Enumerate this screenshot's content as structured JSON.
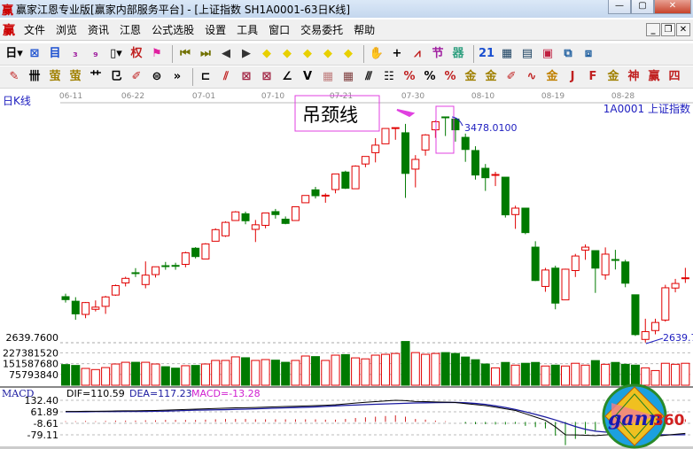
{
  "window": {
    "title": "赢家江恩专业版[赢家内部服务平台] - [上证指数  SH1A0001-63日K线]",
    "logo": "赢",
    "minimize": "—",
    "maximize": "▢",
    "close": "✕"
  },
  "menu": {
    "logo": "赢",
    "items": [
      "文件",
      "浏览",
      "资讯",
      "江恩",
      "公式选股",
      "设置",
      "工具",
      "窗口",
      "交易委托",
      "帮助"
    ],
    "mdi": [
      "_",
      "❐",
      "✕"
    ]
  },
  "toolbar1": [
    {
      "name": "period-dropdown",
      "glyph": "日▾",
      "color": "#000"
    },
    {
      "name": "composite-icon",
      "glyph": "⊠",
      "color": "#1a4fd0"
    },
    {
      "name": "list-icon",
      "glyph": "目",
      "color": "#1a4fd0"
    },
    {
      "name": "chart3-icon",
      "glyph": "₃",
      "color": "#a020a0"
    },
    {
      "name": "chart9-icon",
      "glyph": "₉",
      "color": "#a020a0"
    },
    {
      "name": "candle-type-dropdown",
      "glyph": "▯▾",
      "color": "#000"
    },
    {
      "name": "rights-icon",
      "glyph": "权",
      "color": "#c02020"
    },
    {
      "name": "flag-icon",
      "glyph": "⚑",
      "color": "#e020a0"
    },
    {
      "sep": true
    },
    {
      "name": "first-icon",
      "glyph": "⏮",
      "color": "#707000"
    },
    {
      "name": "last-icon",
      "glyph": "⏭",
      "color": "#707000"
    },
    {
      "name": "prev-icon",
      "glyph": "◀",
      "color": "#333"
    },
    {
      "name": "next-icon",
      "glyph": "▶",
      "color": "#333"
    },
    {
      "name": "left-diamond-icon",
      "glyph": "◆",
      "color": "#e8d000"
    },
    {
      "name": "right-diamond-icon",
      "glyph": "◆",
      "color": "#e8d000"
    },
    {
      "name": "expand-diamond-icon",
      "glyph": "◆",
      "color": "#e8d000"
    },
    {
      "name": "shrink-diamond-icon",
      "glyph": "◆",
      "color": "#e8d000"
    },
    {
      "name": "center-diamond-icon",
      "glyph": "◆",
      "color": "#e8d000"
    },
    {
      "sep": true
    },
    {
      "name": "hand-icon",
      "glyph": "✋",
      "color": "#333"
    },
    {
      "name": "crosshair-icon",
      "glyph": "+",
      "color": "#000"
    },
    {
      "name": "line-chart-icon",
      "glyph": "⩘",
      "color": "#c02020"
    },
    {
      "name": "festival-icon",
      "glyph": "节",
      "color": "#a020a0"
    },
    {
      "name": "gann-icon",
      "glyph": "器",
      "color": "#30a080"
    },
    {
      "sep": true
    },
    {
      "name": "calendar-icon",
      "glyph": "21",
      "color": "#1a4fd0"
    },
    {
      "name": "calculator-icon",
      "glyph": "▦",
      "color": "#1a4060"
    },
    {
      "name": "notes-icon",
      "glyph": "▤",
      "color": "#1a4060"
    },
    {
      "name": "save-icon",
      "glyph": "▣",
      "color": "#c02040"
    },
    {
      "name": "network-icon",
      "glyph": "⧉",
      "color": "#2060a0"
    },
    {
      "name": "multi-window-icon",
      "glyph": "⧈",
      "color": "#2060a0"
    }
  ],
  "toolbar2": [
    {
      "name": "pen-icon",
      "glyph": "✎",
      "color": "#c02020"
    },
    {
      "name": "grid-line-icon",
      "glyph": "卌",
      "color": "#000"
    },
    {
      "name": "gold-ruler-icon",
      "glyph": "萤",
      "color": "#a08000"
    },
    {
      "name": "gold-ruler2-icon",
      "glyph": "萤",
      "color": "#a08000"
    },
    {
      "name": "fork-icon",
      "glyph": "艹",
      "color": "#000"
    },
    {
      "name": "spiral-icon",
      "glyph": "㔾",
      "color": "#000"
    },
    {
      "name": "brush-icon",
      "glyph": "✐",
      "color": "#c02020"
    },
    {
      "name": "circle-grid-icon",
      "glyph": "⊜",
      "color": "#000"
    },
    {
      "name": "more-icon",
      "glyph": "»",
      "color": "#000"
    },
    {
      "sep": true
    },
    {
      "name": "box-icon",
      "glyph": "⊏",
      "color": "#000"
    },
    {
      "name": "fan-icon",
      "glyph": "⫽",
      "color": "#c02020"
    },
    {
      "name": "square-fan-icon",
      "glyph": "⊠",
      "color": "#a02040"
    },
    {
      "name": "square-fan2-icon",
      "glyph": "⊠",
      "color": "#a02040"
    },
    {
      "name": "angle-icon",
      "glyph": "∠",
      "color": "#000"
    },
    {
      "name": "vee-icon",
      "glyph": "V",
      "color": "#000"
    },
    {
      "name": "grid-icon",
      "glyph": "▦",
      "color": "#c08080"
    },
    {
      "name": "grid2-icon",
      "glyph": "▦",
      "color": "#804040"
    },
    {
      "name": "hatch-icon",
      "glyph": "⫻",
      "color": "#000"
    },
    {
      "name": "table-icon",
      "glyph": "☷",
      "color": "#000"
    },
    {
      "name": "percent-slash-icon",
      "glyph": "%",
      "color": "#c02020"
    },
    {
      "name": "percent-icon",
      "glyph": "%",
      "color": "#000"
    },
    {
      "name": "percent-lines-icon",
      "glyph": "%",
      "color": "#c02020"
    },
    {
      "name": "gold-coin-icon",
      "glyph": "金",
      "color": "#a08000"
    },
    {
      "name": "gold-lines-icon",
      "glyph": "金",
      "color": "#a08000"
    },
    {
      "name": "arrow-pen-icon",
      "glyph": "✐",
      "color": "#c02020"
    },
    {
      "name": "wave-icon",
      "glyph": "∿",
      "color": "#c02020"
    },
    {
      "name": "gold-box-icon",
      "glyph": "金",
      "color": "#c08000"
    },
    {
      "name": "j-angle-icon",
      "glyph": "J",
      "color": "#c02020"
    },
    {
      "name": "f-angle-icon",
      "glyph": "F",
      "color": "#c02020"
    },
    {
      "name": "gold-angle-icon",
      "glyph": "金",
      "color": "#a08000"
    },
    {
      "name": "god-angle-icon",
      "glyph": "神",
      "color": "#c02020"
    },
    {
      "name": "win-angle-icon",
      "glyph": "赢",
      "color": "#c02020"
    },
    {
      "name": "four-angle-icon",
      "glyph": "四",
      "color": "#c02020"
    }
  ],
  "chart": {
    "period_label": "日K线",
    "symbol_label": "1A0001  上证指数",
    "annotation": "吊颈线",
    "high_label": "3478.0100",
    "low_label": "2639.76",
    "price_axis_label": "2639.7600",
    "dates": [
      "06-11",
      "06-22",
      "07-01",
      "07-10",
      "07-21",
      "07-30",
      "08-10",
      "08-19",
      "08-28"
    ],
    "volume_axis": [
      "227381520",
      "151587680",
      "75793840"
    ],
    "colors": {
      "up": "#e00000",
      "down": "#007a00",
      "annotation": "#e040e0",
      "label": "#2020c0"
    }
  },
  "chart_data": {
    "type": "candlestick",
    "ohlc": [
      [
        2810,
        2821,
        2788,
        2799
      ],
      [
        2793,
        2808,
        2724,
        2746
      ],
      [
        2744,
        2790,
        2730,
        2788
      ],
      [
        2763,
        2796,
        2755,
        2771
      ],
      [
        2774,
        2813,
        2746,
        2809
      ],
      [
        2816,
        2855,
        2813,
        2851
      ],
      [
        2861,
        2884,
        2848,
        2878
      ],
      [
        2899,
        2916,
        2883,
        2896
      ],
      [
        2855,
        2941,
        2841,
        2890
      ],
      [
        2892,
        2921,
        2881,
        2921
      ],
      [
        2925,
        2939,
        2910,
        2923
      ],
      [
        2926,
        2936,
        2910,
        2924
      ],
      [
        2930,
        2977,
        2919,
        2973
      ],
      [
        2990,
        2994,
        2952,
        2959
      ],
      [
        2950,
        3009,
        2950,
        3006
      ],
      [
        3016,
        3064,
        3016,
        3059
      ],
      [
        3036,
        3090,
        3032,
        3086
      ],
      [
        3093,
        3128,
        3093,
        3125
      ],
      [
        3118,
        3126,
        3079,
        3092
      ],
      [
        3060,
        3095,
        3013,
        3077
      ],
      [
        3075,
        3121,
        3064,
        3121
      ],
      [
        3126,
        3136,
        3100,
        3115
      ],
      [
        3098,
        3108,
        3079,
        3082
      ],
      [
        3093,
        3144,
        3093,
        3144
      ],
      [
        3159,
        3186,
        3159,
        3186
      ],
      [
        3207,
        3218,
        3175,
        3185
      ],
      [
        3185,
        3194,
        3159,
        3187
      ],
      [
        3208,
        3266,
        3194,
        3266
      ],
      [
        3273,
        3278,
        3210,
        3213
      ],
      [
        3211,
        3298,
        3210,
        3295
      ],
      [
        3303,
        3331,
        3291,
        3331
      ],
      [
        3345,
        3399,
        3309,
        3373
      ],
      [
        3378,
        3435,
        3378,
        3435
      ],
      [
        3436,
        3438,
        3393,
        3438
      ],
      [
        3419,
        3452,
        3177,
        3268
      ],
      [
        3284,
        3336,
        3216,
        3320
      ],
      [
        3355,
        3414,
        3334,
        3411
      ],
      [
        3430,
        3465,
        3400,
        3460
      ],
      [
        3478,
        3478.01,
        3407,
        3475
      ],
      [
        3470,
        3473,
        3386,
        3430
      ],
      [
        3402,
        3416,
        3311,
        3357
      ],
      [
        3353,
        3369,
        3245,
        3262
      ],
      [
        3287,
        3303,
        3203,
        3252
      ],
      [
        3262,
        3274,
        3221,
        3264
      ],
      [
        3254,
        3254,
        3104,
        3114
      ],
      [
        3115,
        3148,
        3062,
        3139
      ],
      [
        3139,
        3139,
        3042,
        3048
      ],
      [
        2994,
        3016,
        2868,
        2870
      ],
      [
        2848,
        2917,
        2828,
        2909
      ],
      [
        2916,
        2925,
        2763,
        2786
      ],
      [
        2798,
        2914,
        2798,
        2912
      ],
      [
        2907,
        2969,
        2883,
        2961
      ],
      [
        2983,
        3004,
        2947,
        2994
      ],
      [
        2981,
        2981,
        2824,
        2916
      ],
      [
        2891,
        2993,
        2873,
        2968
      ],
      [
        2948,
        2984,
        2911,
        2946
      ],
      [
        2939,
        2947,
        2845,
        2860
      ],
      [
        2817,
        2817,
        2664,
        2669
      ],
      [
        2651,
        2728,
        2639.76,
        2680
      ],
      [
        2684,
        2728,
        2670,
        2714
      ],
      [
        2723,
        2854,
        2717,
        2843
      ],
      [
        2842,
        2876,
        2826,
        2859
      ],
      [
        2878,
        2917,
        2861,
        2880
      ]
    ],
    "volume": [
      145000000,
      139000000,
      118000000,
      110000000,
      124000000,
      149000000,
      161000000,
      161000000,
      161000000,
      149000000,
      130000000,
      120000000,
      137000000,
      139000000,
      149000000,
      174000000,
      174000000,
      199000000,
      193000000,
      174000000,
      180000000,
      176000000,
      161000000,
      174000000,
      205000000,
      201000000,
      174000000,
      211000000,
      215000000,
      192000000,
      185000000,
      211000000,
      217000000,
      223000000,
      307000000,
      229000000,
      217000000,
      223000000,
      229000000,
      223000000,
      198000000,
      179000000,
      149000000,
      122000000,
      160000000,
      141000000,
      154000000,
      160000000,
      135000000,
      141000000,
      135000000,
      154000000,
      141000000,
      173000000,
      147000000,
      160000000,
      147000000,
      141000000,
      122000000,
      103000000,
      154000000,
      147000000,
      154000000
    ],
    "high": 3478.01,
    "low": 2639.76
  },
  "macd": {
    "title": "MACD",
    "dif_label": "DIF=110.59",
    "dea_label": "DEA=117.23",
    "macd_label": "MACD=-13.28",
    "axis": [
      "132.40",
      "61.89",
      "-8.61",
      "-79.11"
    ],
    "dif": [
      64,
      64,
      65,
      65,
      66,
      67,
      68,
      68,
      69,
      70,
      72,
      74,
      76,
      78,
      80,
      82,
      84,
      86,
      87,
      88,
      90,
      92,
      94,
      96,
      98,
      100,
      102,
      105,
      110,
      115,
      120,
      124,
      128,
      132,
      130,
      125,
      124,
      122,
      121,
      119,
      112,
      106,
      100,
      90,
      80,
      70,
      50,
      30,
      10,
      -30,
      -79,
      -80,
      -82,
      -84,
      -80,
      -75,
      -72,
      -75,
      -85,
      -88,
      -82,
      -76,
      -70
    ],
    "dea": [
      62,
      62,
      62,
      63,
      63,
      63,
      64,
      64,
      64,
      65,
      66,
      68,
      70,
      72,
      73,
      74,
      75,
      77,
      78,
      80,
      82,
      84,
      86,
      88,
      90,
      92,
      95,
      98,
      101,
      103,
      106,
      108,
      110,
      112,
      114,
      116,
      117,
      118,
      119,
      119,
      117,
      113,
      107,
      98,
      88,
      76,
      62,
      46,
      30,
      12,
      -8,
      -28,
      -45,
      -57,
      -62,
      -66,
      -69,
      -71,
      -75,
      -78,
      -79,
      -79,
      -78
    ]
  },
  "logo": {
    "text1": "gann",
    "text2": "360",
    "ring": "1234567890123456789012345678"
  }
}
